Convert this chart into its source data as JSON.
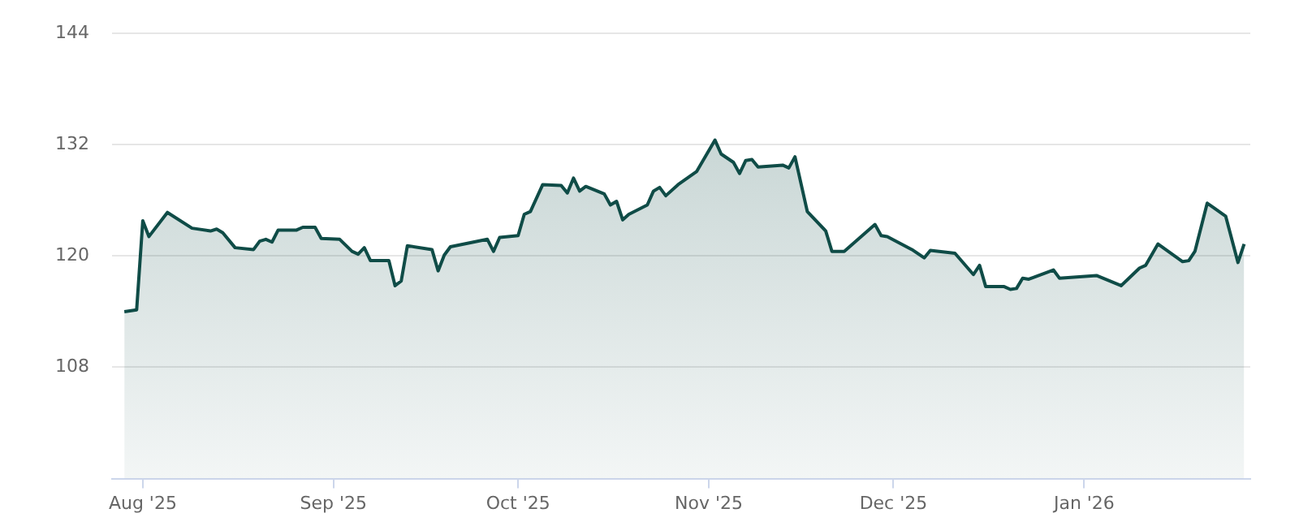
{
  "chart_data": {
    "type": "area",
    "grid": "y",
    "marker": "none",
    "line_style": "solid",
    "xlim": [
      "2025-07-27",
      "2026-01-28"
    ],
    "xticks": [
      {
        "value": "2025-08-01",
        "label": "Aug '25"
      },
      {
        "value": "2025-09-01",
        "label": "Sep '25"
      },
      {
        "value": "2025-10-01",
        "label": "Oct '25"
      },
      {
        "value": "2025-11-01",
        "label": "Nov '25"
      },
      {
        "value": "2025-12-01",
        "label": "Dec '25"
      },
      {
        "value": "2026-01-01",
        "label": "Jan '26"
      }
    ],
    "ylim": [
      96,
      144
    ],
    "yticks": [
      108,
      120,
      132,
      144
    ],
    "series": [
      {
        "color": "#0f4c47",
        "x": [
          "2025-07-29",
          "2025-07-31",
          "2025-08-01",
          "2025-08-02",
          "2025-08-05",
          "2025-08-09",
          "2025-08-12",
          "2025-08-13",
          "2025-08-14",
          "2025-08-16",
          "2025-08-19",
          "2025-08-20",
          "2025-08-21",
          "2025-08-22",
          "2025-08-23",
          "2025-08-26",
          "2025-08-27",
          "2025-08-29",
          "2025-08-30",
          "2025-09-02",
          "2025-09-04",
          "2025-09-05",
          "2025-09-06",
          "2025-09-07",
          "2025-09-10",
          "2025-09-11",
          "2025-09-12",
          "2025-09-13",
          "2025-09-17",
          "2025-09-18",
          "2025-09-19",
          "2025-09-20",
          "2025-09-26",
          "2025-09-27",
          "2025-09-28",
          "2025-10-01",
          "2025-10-02",
          "2025-10-03",
          "2025-10-05",
          "2025-10-08",
          "2025-10-09",
          "2025-10-10",
          "2025-10-11",
          "2025-10-12",
          "2025-10-15",
          "2025-10-16",
          "2025-10-17",
          "2025-10-18",
          "2025-10-19",
          "2025-10-22",
          "2025-10-23",
          "2025-10-24",
          "2025-10-25",
          "2025-10-27",
          "2025-10-30",
          "2025-11-02",
          "2025-11-03",
          "2025-11-05",
          "2025-11-06",
          "2025-11-07",
          "2025-11-08",
          "2025-11-09",
          "2025-11-13",
          "2025-11-14",
          "2025-11-15",
          "2025-11-17",
          "2025-11-20",
          "2025-11-21",
          "2025-11-23",
          "2025-11-28",
          "2025-11-29",
          "2025-11-30",
          "2025-12-04",
          "2025-12-06",
          "2025-12-07",
          "2025-12-11",
          "2025-12-14",
          "2025-12-15",
          "2025-12-16",
          "2025-12-19",
          "2025-12-20",
          "2025-12-21",
          "2025-12-22",
          "2025-12-23",
          "2025-12-27",
          "2025-12-28",
          "2026-01-03",
          "2026-01-07",
          "2026-01-10",
          "2026-01-11",
          "2026-01-13",
          "2026-01-17",
          "2026-01-18",
          "2026-01-19",
          "2026-01-21",
          "2026-01-24",
          "2026-01-26",
          "2026-01-27"
        ],
        "values": [
          114.0,
          114.2,
          123.8,
          122.1,
          124.7,
          123.0,
          122.7,
          122.9,
          122.5,
          120.9,
          120.7,
          121.6,
          121.8,
          121.5,
          122.8,
          122.8,
          123.1,
          123.1,
          121.9,
          121.8,
          120.5,
          120.2,
          120.9,
          119.5,
          119.5,
          116.8,
          117.3,
          121.1,
          120.7,
          118.4,
          120.1,
          121.0,
          121.8,
          120.5,
          122.0,
          122.2,
          124.5,
          124.8,
          127.7,
          127.6,
          126.8,
          128.4,
          127.0,
          127.5,
          126.7,
          125.5,
          125.9,
          123.9,
          124.5,
          125.5,
          127.0,
          127.4,
          126.5,
          127.7,
          129.1,
          132.5,
          131.0,
          130.1,
          128.9,
          130.3,
          130.4,
          129.6,
          129.8,
          129.5,
          130.7,
          124.8,
          122.7,
          120.5,
          120.5,
          123.4,
          122.2,
          122.1,
          120.7,
          119.8,
          120.6,
          120.3,
          118.0,
          119.0,
          116.7,
          116.7,
          116.4,
          116.5,
          117.6,
          117.5,
          118.5,
          117.6,
          117.9,
          116.8,
          118.7,
          119.0,
          121.3,
          119.4,
          119.5,
          120.5,
          125.7,
          124.3,
          119.3,
          121.3
        ]
      }
    ]
  }
}
